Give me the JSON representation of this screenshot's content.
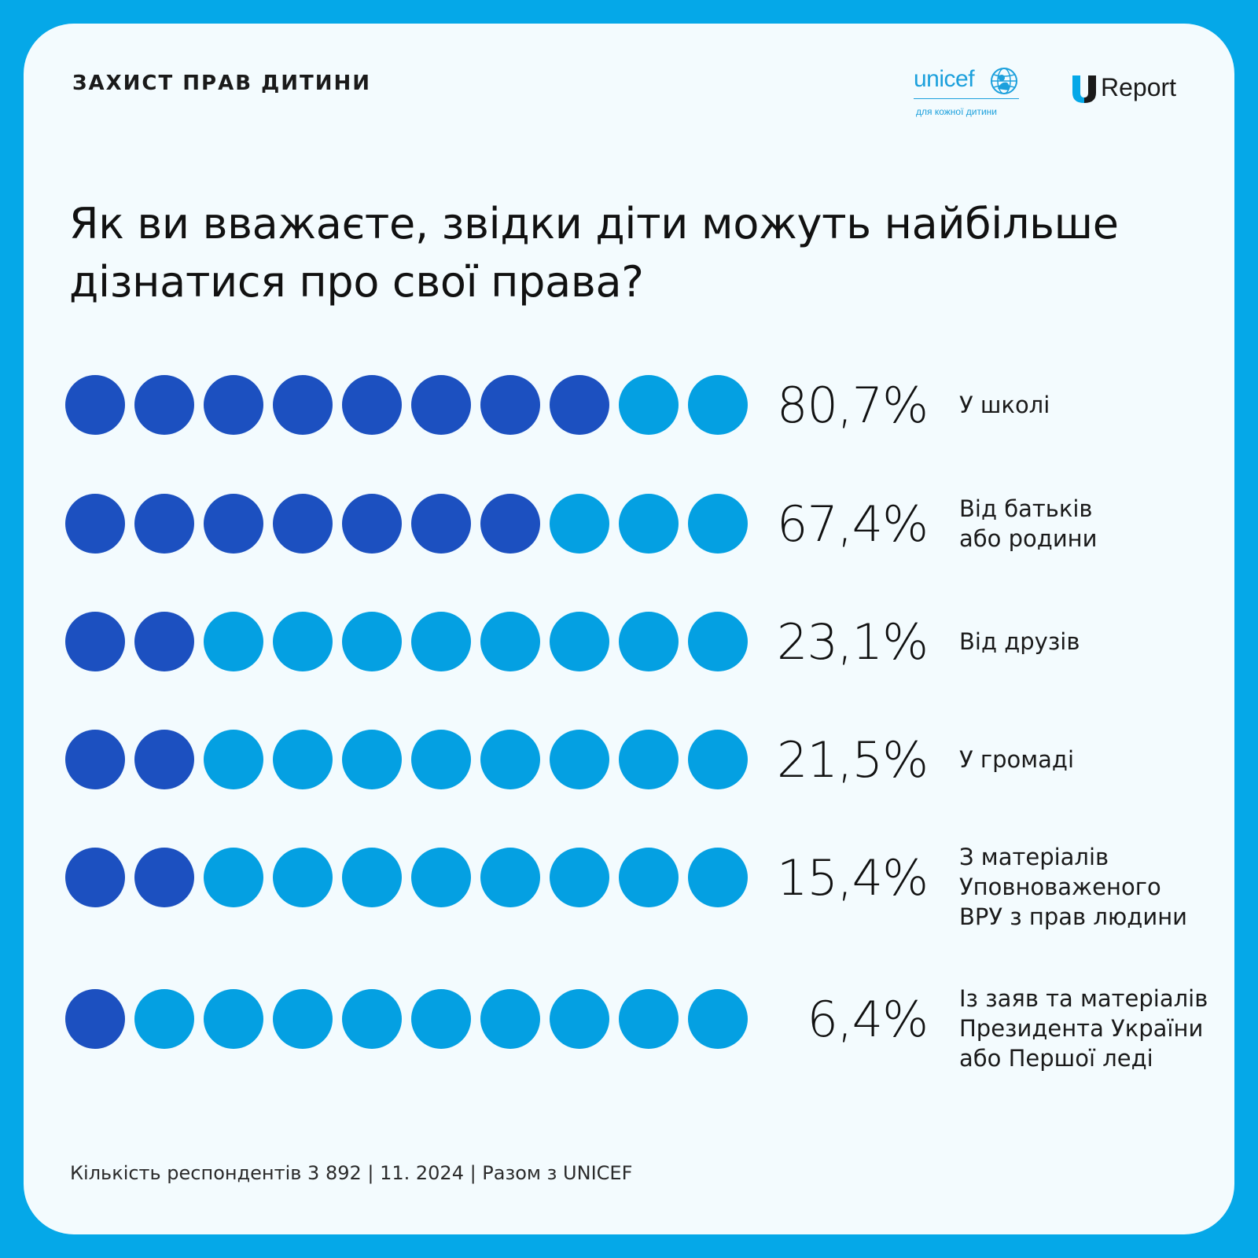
{
  "header": {
    "category": "ЗАХИСТ ПРАВ ДИТИНИ",
    "unicef_logo": "unicef",
    "unicef_tagline": "для кожної дитини",
    "ureport_logo": "Report"
  },
  "title_lines": [
    "Як ви вважаєте, звідки діти можуть найбільше",
    "дізнатися про свої права?"
  ],
  "colors": {
    "filled": "#1c50c0",
    "empty": "#04a0e2",
    "background": "#05a8e8",
    "card": "#f3fbfe"
  },
  "chart_data": {
    "type": "bar",
    "dots_per_row": 10,
    "categories": [
      "У школі",
      "Від батьків або родини",
      "Від друзів",
      "У громаді",
      "З матеріалів Уповноваженого ВРУ з прав людини",
      "Із заяв та матеріалів Президента України або Першої леді"
    ],
    "values": [
      80.7,
      67.4,
      23.1,
      21.5,
      15.4,
      6.4
    ],
    "value_labels": [
      "80,7%",
      "67,4%",
      "23,1%",
      "21,5%",
      "15,4%",
      "6,4%"
    ],
    "label_lines": [
      [
        "У школі"
      ],
      [
        "Від батьків",
        "або родини"
      ],
      [
        "Від друзів"
      ],
      [
        "У громаді"
      ],
      [
        "З матеріалів",
        "Уповноваженого",
        "ВРУ з прав людини"
      ],
      [
        "Із заяв та матеріалів",
        "Президента України",
        "або Першої леді"
      ]
    ]
  },
  "footer": "Кількість респондентів 3 892 | 11. 2024 | Разом з UNICEF"
}
